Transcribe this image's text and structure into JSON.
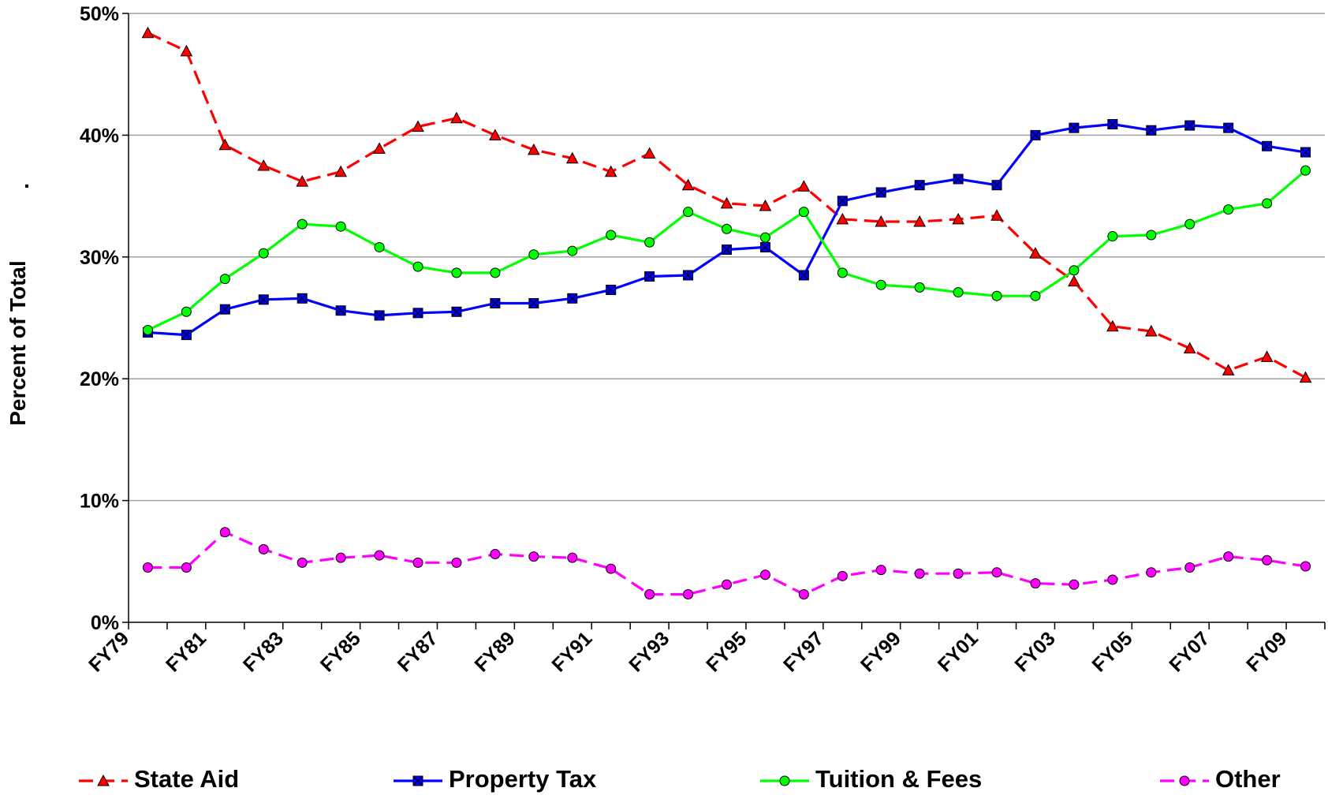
{
  "chart_data": {
    "type": "line",
    "ylabel": "Percent of Total",
    "annotation": ".",
    "categories": [
      "FY79",
      null,
      "FY81",
      null,
      "FY83",
      null,
      "FY85",
      null,
      "FY87",
      null,
      "FY89",
      null,
      "FY91",
      null,
      "FY93",
      null,
      "FY95",
      null,
      "FY97",
      null,
      "FY99",
      null,
      "FY01",
      null,
      "FY03",
      null,
      "FY05",
      null,
      "FY07",
      null,
      "FY09"
    ],
    "series": [
      {
        "name": "State Aid",
        "color": "#ff0000",
        "marker": "triangle",
        "dashed": true,
        "values": [
          48.4,
          46.9,
          39.2,
          37.5,
          36.2,
          37.0,
          38.9,
          40.7,
          41.4,
          40.0,
          38.8,
          38.1,
          37.0,
          38.5,
          35.9,
          34.4,
          34.2,
          35.8,
          33.1,
          32.9,
          32.9,
          33.1,
          33.4,
          30.3,
          28.0,
          24.3,
          23.9,
          22.5,
          20.7,
          21.8,
          20.1
        ]
      },
      {
        "name": "Property Tax",
        "color": "#0000ff",
        "marker": "square",
        "dashed": false,
        "values": [
          23.8,
          23.6,
          25.7,
          26.5,
          26.6,
          25.6,
          25.2,
          25.4,
          25.5,
          26.2,
          26.2,
          26.6,
          27.3,
          28.4,
          28.5,
          30.6,
          30.8,
          28.5,
          34.6,
          35.3,
          35.9,
          36.4,
          35.9,
          40.0,
          40.6,
          40.9,
          40.4,
          40.8,
          40.6,
          39.1,
          38.6
        ]
      },
      {
        "name": "Tuition & Fees",
        "color": "#00ff00",
        "marker": "circle",
        "dashed": false,
        "values": [
          24.0,
          25.5,
          28.2,
          30.3,
          32.7,
          32.5,
          30.8,
          29.2,
          28.7,
          28.7,
          30.2,
          30.5,
          31.8,
          31.2,
          33.7,
          32.3,
          31.6,
          33.7,
          28.7,
          27.7,
          27.5,
          27.1,
          26.8,
          26.8,
          28.9,
          31.7,
          31.8,
          32.7,
          33.9,
          34.4,
          37.1
        ]
      },
      {
        "name": "Other",
        "color": "#ff00ff",
        "marker": "circle",
        "dashed": true,
        "values": [
          4.5,
          4.5,
          7.4,
          6.0,
          4.9,
          5.3,
          5.5,
          4.9,
          4.9,
          5.6,
          5.4,
          5.3,
          4.4,
          2.3,
          2.3,
          3.1,
          3.9,
          2.3,
          3.8,
          4.3,
          4.0,
          4.0,
          4.1,
          3.2,
          3.1,
          3.5,
          4.1,
          4.5,
          5.4,
          5.1,
          4.6
        ]
      }
    ],
    "ylim": [
      0,
      50
    ],
    "yticks": [
      {
        "value": 0,
        "label": "0%"
      },
      {
        "value": 10,
        "label": "10%"
      },
      {
        "value": 20,
        "label": "20%"
      },
      {
        "value": 30,
        "label": "30%"
      },
      {
        "value": 40,
        "label": "40%"
      },
      {
        "value": 50,
        "label": "50%"
      }
    ],
    "grid": true,
    "legend": "bottom"
  }
}
